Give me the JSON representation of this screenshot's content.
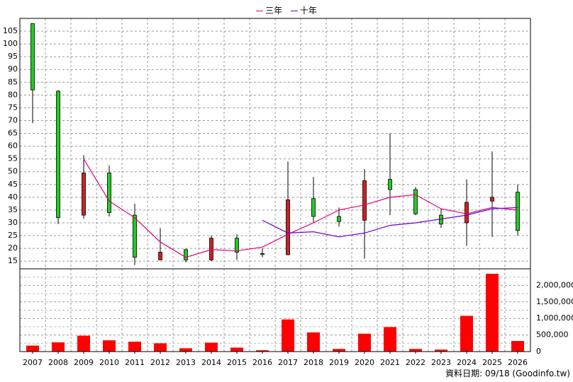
{
  "legend": {
    "three_year": {
      "label": "三年",
      "color": "#e0007a"
    },
    "ten_year": {
      "label": "十年",
      "color": "#6a00c8"
    }
  },
  "source_note": "資料日期: 09/18 (Goodinfo.tw)",
  "chart_data": [
    {
      "type": "candlestick",
      "categories": [
        "2007",
        "2008",
        "2009",
        "2010",
        "2011",
        "2012",
        "2013",
        "2014",
        "2015",
        "2016",
        "2017",
        "2018",
        "2019",
        "2020",
        "2021",
        "2022",
        "2023",
        "2024",
        "2025",
        "2026"
      ],
      "ohlc": [
        {
          "open": 82,
          "high": 108,
          "low": 69,
          "close": 108
        },
        {
          "open": 32,
          "high": 82,
          "low": 29.5,
          "close": 81.5
        },
        {
          "open": 49.5,
          "high": 56.5,
          "low": 31.5,
          "close": 33
        },
        {
          "open": 34,
          "high": 52.5,
          "low": 32.5,
          "close": 49.5
        },
        {
          "open": 16.5,
          "high": 37.5,
          "low": 13.5,
          "close": 33
        },
        {
          "open": 18.5,
          "high": 28,
          "low": 15.5,
          "close": 15.5
        },
        {
          "open": 15.5,
          "high": 20,
          "low": 14.5,
          "close": 19.5
        },
        {
          "open": 24,
          "high": 25,
          "low": 15,
          "close": 15.5
        },
        {
          "open": 18.5,
          "high": 25.5,
          "low": 15.5,
          "close": 24
        },
        {
          "open": 18,
          "high": 20,
          "low": 16.5,
          "close": 18
        },
        {
          "open": 39,
          "high": 54,
          "low": 17.5,
          "close": 17.5
        },
        {
          "open": 32.5,
          "high": 48,
          "low": 30,
          "close": 39.5
        },
        {
          "open": 30.5,
          "high": 36,
          "low": 28.5,
          "close": 32.5
        },
        {
          "open": 46.5,
          "high": 51,
          "low": 16,
          "close": 31
        },
        {
          "open": 43,
          "high": 65,
          "low": 33,
          "close": 47
        },
        {
          "open": 33.5,
          "high": 44,
          "low": 33,
          "close": 43
        },
        {
          "open": 29.5,
          "high": 35.5,
          "low": 28,
          "close": 33
        },
        {
          "open": 38,
          "high": 47,
          "low": 21,
          "close": 30
        },
        {
          "open": 40,
          "high": 58,
          "low": 24.5,
          "close": 38.5
        },
        {
          "open": 27,
          "high": 45,
          "low": 25,
          "close": 42
        }
      ],
      "up_color": "#22cc22",
      "down_color": "#cc2222",
      "series": [
        {
          "name": "三年",
          "color": "#e0007a",
          "values": [
            null,
            null,
            55,
            38.5,
            32,
            22.5,
            16.5,
            19.5,
            19,
            20.5,
            25.5,
            30,
            35,
            37,
            40,
            41,
            35.5,
            33.5,
            36,
            35
          ]
        },
        {
          "name": "十年",
          "color": "#6a00c8",
          "values": [
            null,
            null,
            null,
            null,
            null,
            null,
            null,
            null,
            null,
            31,
            26,
            26.5,
            24.5,
            26,
            29,
            30,
            31.5,
            33,
            35.5,
            36
          ]
        }
      ],
      "y_ticks": [
        15,
        20,
        25,
        30,
        35,
        40,
        45,
        50,
        55,
        60,
        65,
        70,
        75,
        80,
        85,
        90,
        95,
        100,
        105
      ],
      "ylim": [
        12,
        110
      ],
      "grid": true
    },
    {
      "type": "bar",
      "categories": [
        "2007",
        "2008",
        "2009",
        "2010",
        "2011",
        "2012",
        "2013",
        "2014",
        "2015",
        "2016",
        "2017",
        "2018",
        "2019",
        "2020",
        "2021",
        "2022",
        "2023",
        "2024",
        "2025",
        "2026"
      ],
      "values": [
        180000,
        280000,
        480000,
        340000,
        300000,
        250000,
        100000,
        270000,
        120000,
        40000,
        970000,
        580000,
        80000,
        540000,
        740000,
        80000,
        60000,
        1080000,
        2350000,
        320000
      ],
      "bar_color": "#ff0000",
      "y_ticks": [
        {
          "value": 0,
          "label": "0"
        },
        {
          "value": 500000,
          "label": "500,000"
        },
        {
          "value": 1000000,
          "label": "1,000,000"
        },
        {
          "value": 1500000,
          "label": "1,500,000"
        },
        {
          "value": 2000000,
          "label": "2,000,000"
        }
      ],
      "ylim": [
        0,
        2500000
      ],
      "grid": true
    }
  ]
}
